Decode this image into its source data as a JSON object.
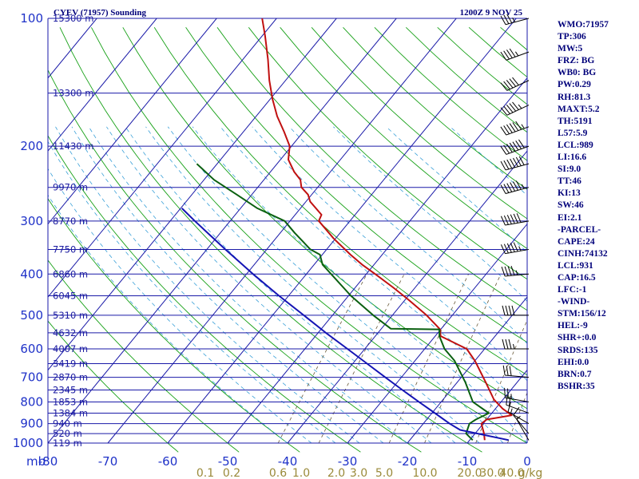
{
  "header": {
    "title": "CYEV (71957) Sounding",
    "datetime": "1200Z  9 NOV 25"
  },
  "stats": [
    "WMO:71957",
    "TP:306",
    "MW:5",
    "FRZ: BG",
    "WB0: BG",
    "PW:0.29",
    "RH:81.3",
    "MAXT:5.2",
    "TH:5191",
    "L57:5.9",
    "LCL:989",
    "LI:16.6",
    "SI:9.0",
    "TT:46",
    "KI:13",
    "SW:46",
    "EI:2.1",
    "-PARCEL-",
    "CAPE:24",
    "CINH:74132",
    "LCL:931",
    "CAP:16.5",
    "LFC:-1",
    "-WIND-",
    "STM:156/12",
    "HEL:-9",
    "SHR+:0.0",
    "SRDS:135",
    "EHI:0.0",
    "BRN:0.7",
    "BSHR:35"
  ],
  "chart_data": {
    "type": "line",
    "subtype": "skew-T log-P sounding",
    "y_axis": {
      "unit_label": "mb",
      "scale": "log",
      "range": [
        1000,
        100
      ],
      "ticks": [
        100,
        200,
        300,
        400,
        500,
        600,
        700,
        800,
        900,
        1000
      ]
    },
    "x_axis": {
      "unit": "C",
      "range": [
        -80,
        0
      ],
      "ticks": [
        -80,
        -70,
        -60,
        -50,
        -40,
        -30,
        -20,
        -10,
        0
      ],
      "tick_labels": [
        "-80",
        "-70",
        "-60",
        "-50",
        "-40",
        "-30",
        "-20",
        "-10",
        "0"
      ]
    },
    "height_labels": [
      {
        "p": 100,
        "label": "15300 m"
      },
      {
        "p": 150,
        "label": "13300 m"
      },
      {
        "p": 200,
        "label": "11430 m"
      },
      {
        "p": 250,
        "label": "9970 m"
      },
      {
        "p": 300,
        "label": "8770 m"
      },
      {
        "p": 350,
        "label": "7750 m"
      },
      {
        "p": 400,
        "label": "6860 m"
      },
      {
        "p": 450,
        "label": "6045 m"
      },
      {
        "p": 500,
        "label": "5310 m"
      },
      {
        "p": 550,
        "label": "4632 m"
      },
      {
        "p": 600,
        "label": "4007 m"
      },
      {
        "p": 650,
        "label": "3419 m"
      },
      {
        "p": 700,
        "label": "2870 m"
      },
      {
        "p": 750,
        "label": "2345 m"
      },
      {
        "p": 800,
        "label": "1853 m"
      },
      {
        "p": 850,
        "label": "1384 m"
      },
      {
        "p": 900,
        "label": "940 m"
      },
      {
        "p": 950,
        "label": "520 m"
      },
      {
        "p": 1000,
        "label": "119 m"
      }
    ],
    "mixing_ratio_labels": [
      "0.1",
      "0.2",
      "0.6",
      "1.0",
      "2.0",
      "3.0",
      "5.0",
      "10.0",
      "20.0",
      "30.0",
      "40.0",
      "g/kg"
    ],
    "mixing_ratio_values": [
      0.1,
      0.2,
      0.6,
      1.0,
      2.0,
      3.0,
      5.0,
      10.0,
      20.0,
      30.0,
      40.0
    ],
    "series": [
      {
        "name": "Temperature",
        "color": "#c01010",
        "p": [
          984,
          950,
          900,
          880,
          860,
          830,
          790,
          720,
          640,
          600,
          560,
          540,
          500,
          460,
          430,
          400,
          380,
          360,
          330,
          300,
          290,
          270,
          260,
          250,
          240,
          230,
          215,
          200,
          185,
          170,
          155,
          140,
          125,
          110,
          100
        ],
        "t": [
          -7.5,
          -8.5,
          -10.3,
          -10.0,
          -6.4,
          -8.8,
          -11.5,
          -15.2,
          -20.0,
          -23.0,
          -29.1,
          -30.1,
          -34.3,
          -39.4,
          -43.7,
          -48.5,
          -52.0,
          -55.3,
          -60.3,
          -65.2,
          -65.6,
          -69.3,
          -70.6,
          -72.7,
          -73.9,
          -76.0,
          -78.7,
          -80.3,
          -83.2,
          -86.5,
          -89.6,
          -92.7,
          -95.8,
          -99.5,
          -102.4
        ]
      },
      {
        "name": "Dewpoint",
        "color": "#0a6010",
        "p": [
          984,
          950,
          900,
          880,
          850,
          800,
          720,
          640,
          600,
          560,
          540,
          538,
          500,
          450,
          380,
          360,
          350,
          320,
          300,
          280,
          260,
          240,
          220
        ],
        "t": [
          -9.5,
          -11.5,
          -12.3,
          -11.8,
          -10.5,
          -14.7,
          -18.6,
          -23.4,
          -26.7,
          -29.3,
          -30.2,
          -38.4,
          -43.2,
          -49.6,
          -58.6,
          -60.4,
          -62.7,
          -67.6,
          -70.9,
          -77.2,
          -82.5,
          -88.3,
          -93.4
        ]
      },
      {
        "name": "Parcel path",
        "color": "#1414b4",
        "p": [
          984,
          931,
          900,
          850,
          800,
          750,
          700,
          650,
          600,
          550,
          500,
          450,
          400,
          350,
          300,
          280
        ],
        "t": [
          -3.5,
          -13.0,
          -15.6,
          -19.5,
          -23.7,
          -28.1,
          -32.7,
          -37.6,
          -42.9,
          -48.7,
          -54.8,
          -61.6,
          -68.9,
          -76.9,
          -85.9,
          -89.8
        ]
      }
    ],
    "wind_barbs": [
      {
        "p": 985,
        "dir": 330,
        "spd": 5
      },
      {
        "p": 950,
        "dir": 320,
        "spd": 10
      },
      {
        "p": 900,
        "dir": 300,
        "spd": 15
      },
      {
        "p": 850,
        "dir": 290,
        "spd": 20
      },
      {
        "p": 800,
        "dir": 280,
        "spd": 25
      },
      {
        "p": 700,
        "dir": 275,
        "spd": 30
      },
      {
        "p": 600,
        "dir": 270,
        "spd": 35
      },
      {
        "p": 500,
        "dir": 270,
        "spd": 40
      },
      {
        "p": 400,
        "dir": 265,
        "spd": 45
      },
      {
        "p": 350,
        "dir": 260,
        "spd": 55
      },
      {
        "p": 300,
        "dir": 260,
        "spd": 60
      },
      {
        "p": 250,
        "dir": 255,
        "spd": 65
      },
      {
        "p": 220,
        "dir": 255,
        "spd": 70
      },
      {
        "p": 200,
        "dir": 250,
        "spd": 70
      },
      {
        "p": 180,
        "dir": 250,
        "spd": 65
      },
      {
        "p": 160,
        "dir": 245,
        "spd": 55
      },
      {
        "p": 140,
        "dir": 245,
        "spd": 50
      },
      {
        "p": 120,
        "dir": 250,
        "spd": 45
      },
      {
        "p": 100,
        "dir": 255,
        "spd": 35
      }
    ]
  }
}
